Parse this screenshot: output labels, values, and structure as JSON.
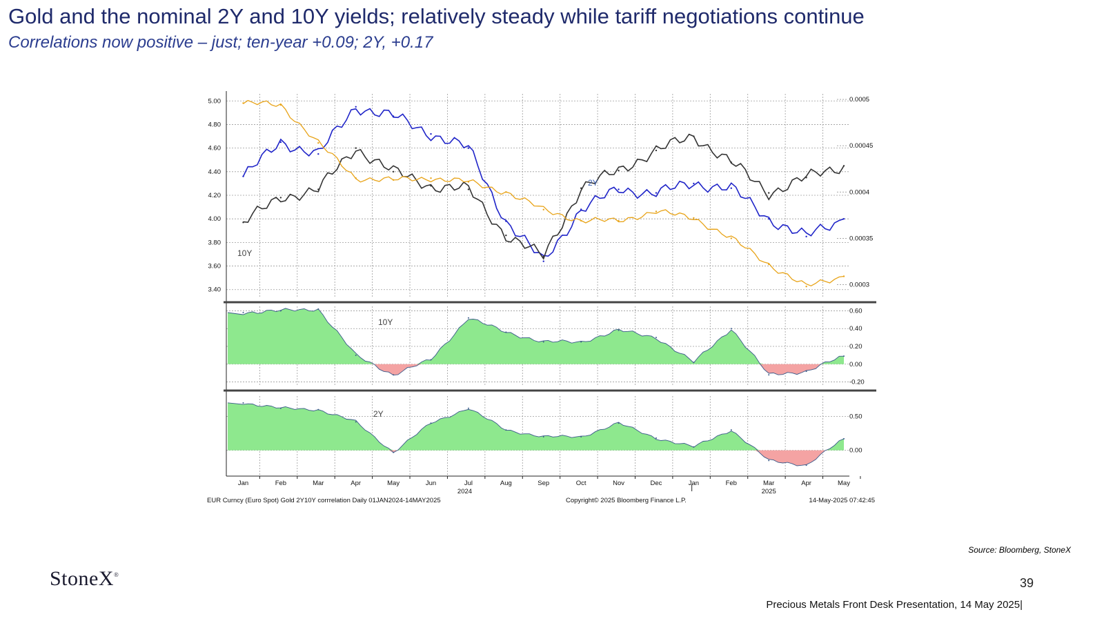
{
  "slide": {
    "title": "Gold and the nominal 2Y and 10Y yields; relatively steady while tariff negotiations continue",
    "subtitle": "Correlations now positive – just; ten-year +0.09;  2Y, +0.17",
    "source": "Source: Bloomberg, StoneX",
    "logo": "StoneX",
    "logo_mark": "®",
    "page_number": "39",
    "footer": "Precious Metals Front Desk Presentation, 14 May 2025|"
  },
  "chart_data": [
    {
      "type": "line",
      "panel": "price",
      "x": [
        "2024-01",
        "2024-02",
        "2024-03",
        "2024-04",
        "2024-05",
        "2024-06",
        "2024-07",
        "2024-08",
        "2024-09",
        "2024-10",
        "2024-11",
        "2024-12",
        "2025-01",
        "2025-02",
        "2025-03",
        "2025-04",
        "2025-05"
      ],
      "x_tick_labels": [
        "Jan",
        "Feb",
        "Mar",
        "Apr",
        "May",
        "Jun",
        "Jul",
        "Aug",
        "Sep",
        "Oct",
        "Nov",
        "Dec",
        "Jan",
        "Feb",
        "Mar",
        "Apr",
        "May"
      ],
      "year_labels": [
        "2024",
        "2025"
      ],
      "left_axis": {
        "ticks": [
          "5.00",
          "4.80",
          "4.60",
          "4.40",
          "4.20",
          "4.00",
          "3.80",
          "3.60",
          "3.40"
        ],
        "ylim": [
          3.34,
          5.06
        ]
      },
      "right_axis": {
        "ticks": [
          "0.0005",
          "0.00045",
          "0.0004",
          "0.00035",
          "0.0003"
        ],
        "ylim": [
          0.000287,
          0.000506
        ]
      },
      "series": [
        {
          "name": "2Y",
          "axis": "left",
          "color": "#1f24c8",
          "values": [
            4.36,
            4.65,
            4.55,
            4.95,
            4.87,
            4.72,
            4.6,
            3.98,
            3.64,
            4.08,
            4.25,
            4.22,
            4.3,
            4.26,
            4.0,
            3.85,
            4.0
          ]
        },
        {
          "name": "10Y",
          "axis": "left",
          "color": "#333333",
          "values": [
            3.97,
            4.18,
            4.25,
            4.6,
            4.4,
            4.28,
            4.25,
            3.86,
            3.68,
            4.26,
            4.41,
            4.58,
            4.7,
            4.48,
            4.22,
            4.35,
            4.45
          ]
        },
        {
          "name": "",
          "axis": "right",
          "color": "#e8a317",
          "values": [
            0.000496,
            0.000494,
            0.000453,
            0.000415,
            0.000413,
            0.000415,
            0.000411,
            0.0004,
            0.000381,
            0.000369,
            0.000369,
            0.000379,
            0.000372,
            0.00035,
            0.000322,
            0.000298,
            0.000309
          ]
        }
      ],
      "annotations": [
        "2Y",
        "10Y"
      ]
    },
    {
      "type": "area",
      "panel": "correlation-10y",
      "label": "10Y",
      "axis": {
        "ticks": [
          "0.60",
          "0.40",
          "0.20",
          "0.00",
          "-0.20"
        ],
        "ylim": [
          -0.25,
          0.65
        ]
      },
      "x": [
        "2024-01",
        "2024-02",
        "2024-03",
        "2024-04",
        "2024-05",
        "2024-06",
        "2024-07",
        "2024-08",
        "2024-09",
        "2024-10",
        "2024-11",
        "2024-12",
        "2025-01",
        "2025-02",
        "2025-03",
        "2025-04",
        "2025-05"
      ],
      "values": [
        0.58,
        0.6,
        0.62,
        0.1,
        -0.12,
        0.05,
        0.52,
        0.36,
        0.25,
        0.25,
        0.38,
        0.3,
        0.02,
        0.4,
        -0.12,
        -0.08,
        0.09
      ],
      "positive_color": "#8ee88e",
      "negative_color": "#f4a3a3"
    },
    {
      "type": "area",
      "panel": "correlation-2y",
      "label": "2Y",
      "axis": {
        "ticks": [
          "0.50",
          "0.00"
        ],
        "ylim": [
          -0.36,
          0.8
        ]
      },
      "x": [
        "2024-01",
        "2024-02",
        "2024-03",
        "2024-04",
        "2024-05",
        "2024-06",
        "2024-07",
        "2024-08",
        "2024-09",
        "2024-10",
        "2024-11",
        "2024-12",
        "2025-01",
        "2025-02",
        "2025-03",
        "2025-04",
        "2025-05"
      ],
      "values": [
        0.7,
        0.62,
        0.6,
        0.42,
        -0.03,
        0.4,
        0.62,
        0.3,
        0.2,
        0.2,
        0.4,
        0.18,
        0.05,
        0.3,
        -0.15,
        -0.22,
        0.17
      ],
      "positive_color": "#8ee88e",
      "negative_color": "#f4a3a3"
    }
  ],
  "chart_footer": {
    "left": "EUR Curncy (Euro Spot) Gold 2Y10Y corrrelation  Daily 01JAN2024-14MAY2025",
    "center": "Copyright© 2025 Bloomberg Finance L.P.",
    "right": "14-May-2025 07:42:45"
  }
}
